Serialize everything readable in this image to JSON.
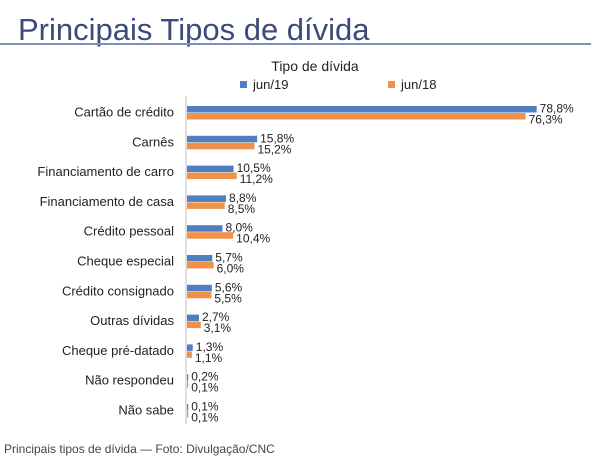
{
  "page": {
    "title": "Principais Tipos de dívida",
    "caption": "Principais tipos de dívida — Foto: Divulgação/CNC"
  },
  "colors": {
    "series_a": "#4f7fc1",
    "series_b": "#f0914a",
    "title": "#3b4a7a",
    "rule": "#7d8fc0"
  },
  "chart_data": {
    "type": "bar",
    "orientation": "horizontal",
    "title": "Tipo de dívida",
    "categories": [
      "Cartão de crédito",
      "Carnês",
      "Financiamento de carro",
      "Financiamento de casa",
      "Crédito pessoal",
      "Cheque especial",
      "Crédito consignado",
      "Outras dívidas",
      "Cheque pré-datado",
      "Não respondeu",
      "Não sabe"
    ],
    "series": [
      {
        "name": "jun/19",
        "values": [
          78.8,
          15.8,
          10.5,
          8.8,
          8.0,
          5.7,
          5.6,
          2.7,
          1.3,
          0.2,
          0.1
        ],
        "labels": [
          "78,8%",
          "15,8%",
          "10,5%",
          "8,8%",
          "8,0%",
          "5,7%",
          "5,6%",
          "2,7%",
          "1,3%",
          "0,2%",
          "0,1%"
        ]
      },
      {
        "name": "jun/18",
        "values": [
          76.3,
          15.2,
          11.2,
          8.5,
          10.4,
          6.0,
          5.5,
          3.1,
          1.1,
          0.1,
          0.1
        ],
        "labels": [
          "76,3%",
          "15,2%",
          "11,2%",
          "8,5%",
          "10,4%",
          "6,0%",
          "5,5%",
          "3,1%",
          "1,1%",
          "0,1%",
          "0,1%"
        ]
      }
    ],
    "xlim": [
      0,
      80
    ],
    "grid": false,
    "legend_position": "top"
  }
}
